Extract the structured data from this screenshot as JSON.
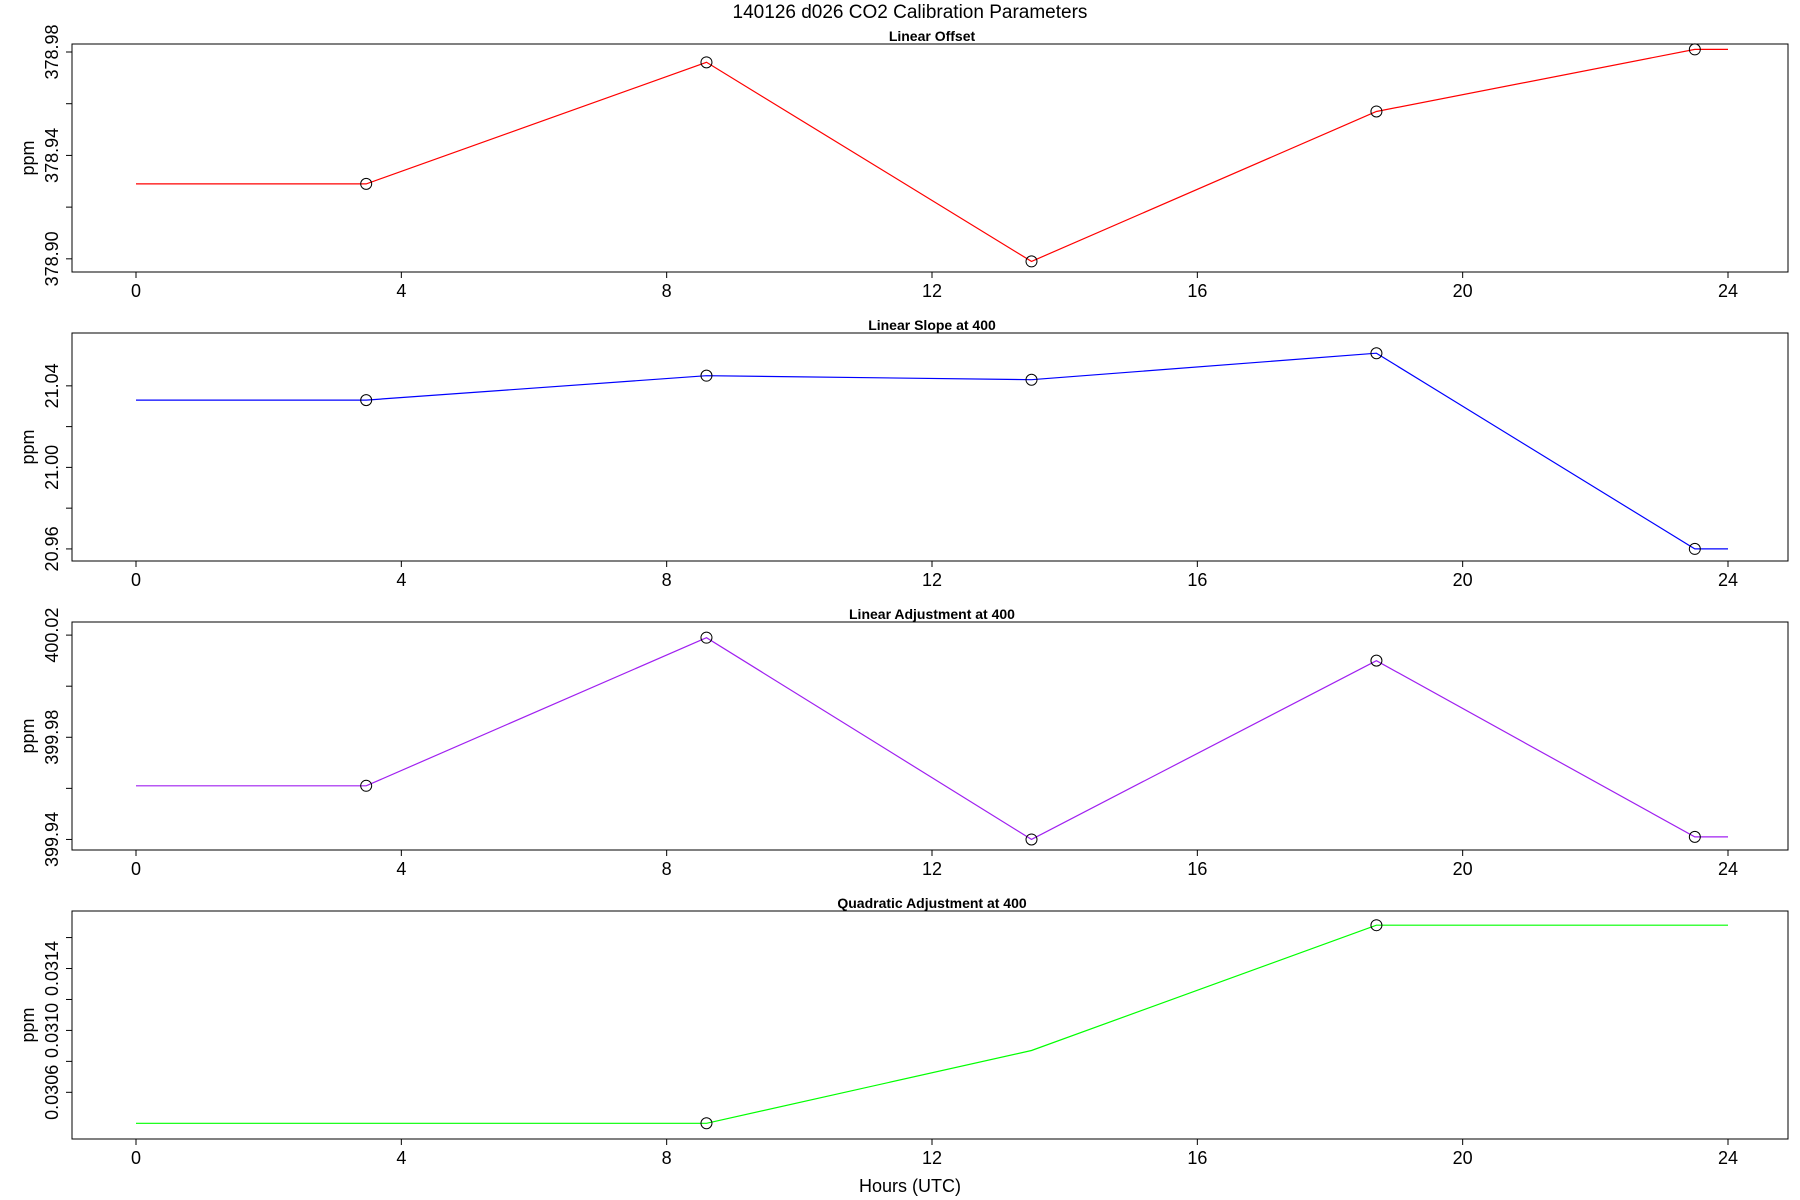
{
  "figure": {
    "title": "140126   d026   CO2 Calibration Parameters",
    "xlabel": "Hours (UTC)"
  },
  "chart_data": [
    {
      "type": "line",
      "title": "Linear Offset",
      "xlabel": "",
      "ylabel": "ppm",
      "color": "#ff0000",
      "xlim": [
        0,
        24
      ],
      "ylim": [
        378.898,
        378.98
      ],
      "x_ticks": [
        "0",
        "4",
        "8",
        "12",
        "16",
        "20",
        "24"
      ],
      "y_ticks": [
        "378.90",
        "378.94",
        "378.98"
      ],
      "y_minor_ticks": [
        378.92,
        378.96
      ],
      "series": [
        {
          "x": [
            0,
            3.47,
            8.6,
            13.5,
            18.7,
            23.5,
            24
          ],
          "y": [
            378.929,
            378.929,
            378.976,
            378.899,
            378.957,
            378.981,
            378.981
          ],
          "markers": [
            false,
            true,
            true,
            true,
            true,
            true,
            false
          ]
        }
      ]
    },
    {
      "type": "line",
      "title": "Linear Slope at 400",
      "xlabel": "",
      "ylabel": "ppm",
      "color": "#0000ff",
      "xlim": [
        0,
        24
      ],
      "ylim": [
        20.958,
        21.062
      ],
      "x_ticks": [
        "0",
        "4",
        "8",
        "12",
        "16",
        "20",
        "24"
      ],
      "y_ticks": [
        "20.96",
        "21.00",
        "21.04"
      ],
      "y_minor_ticks": [
        20.98,
        21.02
      ],
      "series": [
        {
          "x": [
            0,
            3.47,
            8.6,
            13.5,
            18.7,
            23.5,
            24
          ],
          "y": [
            21.033,
            21.033,
            21.045,
            21.043,
            21.056,
            20.96,
            20.96
          ],
          "markers": [
            false,
            true,
            true,
            true,
            true,
            true,
            false
          ]
        }
      ]
    },
    {
      "type": "line",
      "title": "Linear Adjustment at 400",
      "xlabel": "",
      "ylabel": "ppm",
      "color": "#a020f0",
      "xlim": [
        0,
        24
      ],
      "ylim": [
        399.939,
        400.022
      ],
      "x_ticks": [
        "0",
        "4",
        "8",
        "12",
        "16",
        "20",
        "24"
      ],
      "y_ticks": [
        "399.94",
        "399.98",
        "400.02"
      ],
      "y_minor_ticks": [
        399.96,
        400.0
      ],
      "series": [
        {
          "x": [
            0,
            3.47,
            8.6,
            13.5,
            18.7,
            23.5,
            24
          ],
          "y": [
            399.961,
            399.961,
            400.019,
            399.94,
            400.01,
            399.941,
            399.941
          ],
          "markers": [
            false,
            true,
            true,
            true,
            true,
            true,
            false
          ]
        }
      ]
    },
    {
      "type": "line",
      "title": "Quadratic Adjustment at 400",
      "xlabel": "Hours (UTC)",
      "ylabel": "ppm",
      "color": "#00ff00",
      "xlim": [
        0,
        24
      ],
      "ylim": [
        0.03035,
        0.03172
      ],
      "x_ticks": [
        "0",
        "4",
        "8",
        "12",
        "16",
        "20",
        "24"
      ],
      "y_ticks": [
        "0.0306",
        "0.0310",
        "0.0314"
      ],
      "y_minor_ticks": [
        0.0308,
        0.0312,
        0.0316
      ],
      "series": [
        {
          "x": [
            0,
            3.47,
            8.6,
            13.5,
            18.7,
            23.5,
            24
          ],
          "y": [
            0.0304,
            0.0304,
            0.0304,
            0.03087,
            0.03168,
            0.03168,
            0.03168
          ],
          "markers": [
            false,
            false,
            true,
            false,
            true,
            false,
            false
          ]
        }
      ]
    }
  ]
}
